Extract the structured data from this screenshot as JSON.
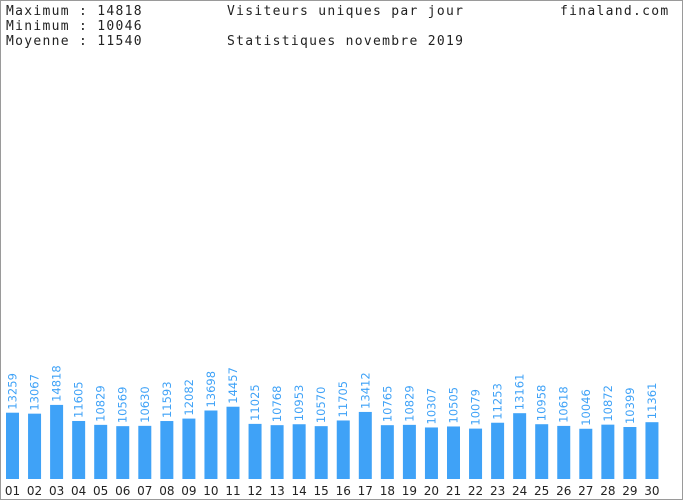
{
  "header": {
    "maximum": "Maximum : 14818",
    "minimum": "Minimum : 10046",
    "moyenne": "Moyenne : 11540",
    "title": "Visiteurs uniques par jour",
    "subtitle": "Statistiques novembre 2019",
    "site": "finaland.com"
  },
  "chart_data": {
    "type": "bar",
    "title": "Visiteurs uniques par jour",
    "subtitle": "Statistiques novembre 2019",
    "xlabel": "",
    "ylabel": "",
    "grid": false,
    "legend": "none",
    "bar_color": "#3fa2f7",
    "label_color": "#3fa2f7",
    "categories": [
      "01",
      "02",
      "03",
      "04",
      "05",
      "06",
      "07",
      "08",
      "09",
      "10",
      "11",
      "12",
      "13",
      "14",
      "15",
      "16",
      "17",
      "18",
      "19",
      "20",
      "21",
      "22",
      "23",
      "24",
      "25",
      "26",
      "27",
      "28",
      "29",
      "30"
    ],
    "values": [
      13259,
      13067,
      14818,
      11605,
      10829,
      10569,
      10630,
      11593,
      12082,
      13698,
      14457,
      11025,
      10768,
      10953,
      10570,
      11705,
      13412,
      10765,
      10829,
      10307,
      10505,
      10079,
      11253,
      13161,
      10958,
      10618,
      10046,
      10872,
      10399,
      11361
    ]
  }
}
